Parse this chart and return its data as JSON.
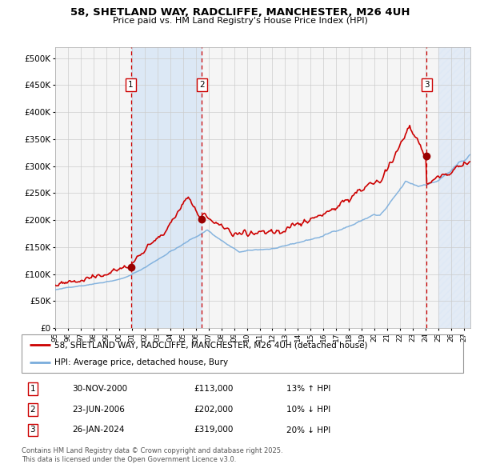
{
  "title_line1": "58, SHETLAND WAY, RADCLIFFE, MANCHESTER, M26 4UH",
  "title_line2": "Price paid vs. HM Land Registry's House Price Index (HPI)",
  "ylabel_ticks": [
    "£0",
    "£50K",
    "£100K",
    "£150K",
    "£200K",
    "£250K",
    "£300K",
    "£350K",
    "£400K",
    "£450K",
    "£500K"
  ],
  "ytick_vals": [
    0,
    50000,
    100000,
    150000,
    200000,
    250000,
    300000,
    350000,
    400000,
    450000,
    500000
  ],
  "ylim": [
    0,
    520000
  ],
  "xlim_start": 1995.0,
  "xlim_end": 2027.5,
  "sale_dates": [
    2000.92,
    2006.48,
    2024.07
  ],
  "sale_prices": [
    113000,
    202000,
    319000
  ],
  "sale_labels": [
    "1",
    "2",
    "3"
  ],
  "sale_date_strs": [
    "30-NOV-2000",
    "23-JUN-2006",
    "26-JAN-2024"
  ],
  "sale_price_strs": [
    "£113,000",
    "£202,000",
    "£319,000"
  ],
  "sale_hpi_strs": [
    "13% ↑ HPI",
    "10% ↓ HPI",
    "20% ↓ HPI"
  ],
  "shaded_region": [
    2000.92,
    2006.48
  ],
  "future_start": 2025.0,
  "legend_line1": "58, SHETLAND WAY, RADCLIFFE, MANCHESTER, M26 4UH (detached house)",
  "legend_line2": "HPI: Average price, detached house, Bury",
  "hpi_color": "#7aaddc",
  "price_color": "#cc0000",
  "shaded_color": "#dce8f5",
  "future_color": "#dce8f5",
  "marker_color": "#990000",
  "grid_color": "#cccccc",
  "dashed_line_color": "#cc0000",
  "bg_color": "#f5f5f5",
  "footnote": "Contains HM Land Registry data © Crown copyright and database right 2025.\nThis data is licensed under the Open Government Licence v3.0."
}
